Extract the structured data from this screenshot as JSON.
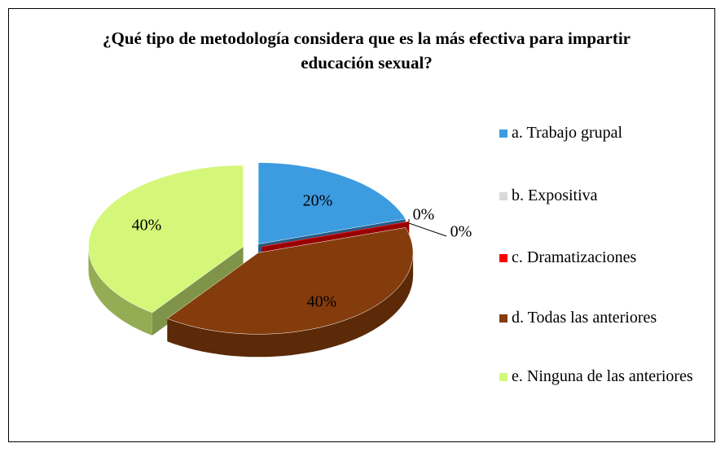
{
  "chart_data": {
    "type": "pie",
    "title": "¿Qué tipo de metodología considera que es la más efectiva para impartir educación sexual?",
    "categories": [
      "a. Trabajo grupal",
      "b. Expositiva",
      "c. Dramatizaciones",
      "d. Todas las anteriores",
      "e. Ninguna de las anteriores"
    ],
    "values": [
      20,
      0,
      0,
      40,
      40
    ],
    "value_labels": [
      "20%",
      "0%",
      "0%",
      "40%",
      "40%"
    ],
    "colors": [
      "#3d9be0",
      "#d9d9d9",
      "#ff0000",
      "#843c0c",
      "#d4f77a"
    ],
    "legend": "right"
  }
}
